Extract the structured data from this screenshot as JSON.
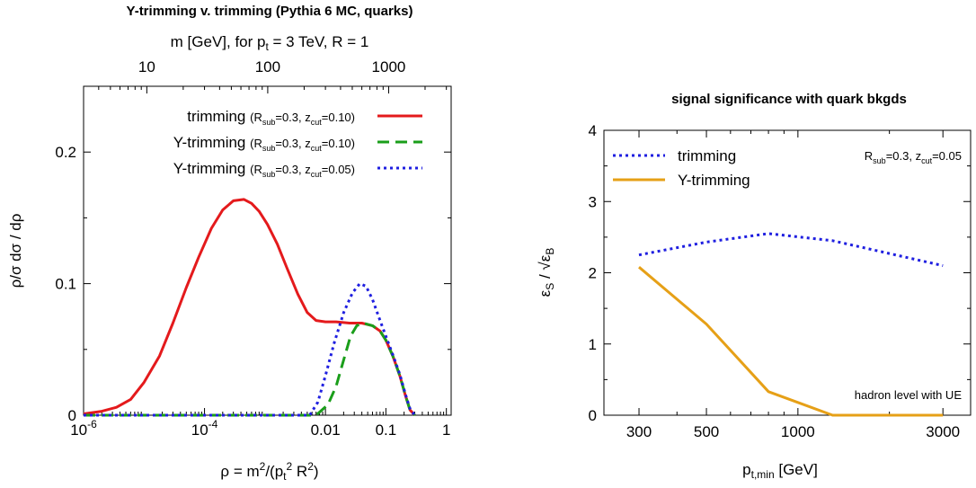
{
  "chart_data": [
    {
      "type": "line",
      "title": "Y-trimming v. trimming (Pythia 6 MC, quarks)",
      "top_axis_label": "m [GeV], for p_t = 3 TeV, R = 1",
      "top_ticks": [
        {
          "label": "10",
          "m": 10
        },
        {
          "label": "100",
          "m": 100
        },
        {
          "label": "1000",
          "m": 1000
        }
      ],
      "xlabel": "ρ = m²/(p_t² R²)",
      "ylabel": "ρ/σ dσ / dρ",
      "xscale": "log",
      "xlim": [
        1e-06,
        1.2
      ],
      "ylim": [
        0,
        0.25
      ],
      "xticks": [
        {
          "value": 1e-06,
          "base": "10",
          "exp": "-6"
        },
        {
          "value": 0.0001,
          "base": "10",
          "exp": "-4"
        },
        {
          "value": 0.01,
          "base": "0.01",
          "exp": ""
        },
        {
          "value": 0.1,
          "base": "0.1",
          "exp": ""
        },
        {
          "value": 1,
          "base": "1",
          "exp": ""
        }
      ],
      "yticks": [
        {
          "value": 0,
          "label": "0"
        },
        {
          "value": 0.1,
          "label": "0.1"
        },
        {
          "value": 0.2,
          "label": "0.2"
        }
      ],
      "legend_position": "top-right",
      "series": [
        {
          "name": "trimming",
          "params": "(R_sub=0.3, z_cut=0.10)",
          "color": "#e41a1c",
          "dash": "solid",
          "x": [
            1e-06,
            2e-06,
            3.5e-06,
            6e-06,
            1e-05,
            1.8e-05,
            3e-05,
            5e-05,
            8e-05,
            0.00013,
            0.0002,
            0.0003,
            0.00045,
            0.0006,
            0.0008,
            0.0011,
            0.0016,
            0.0023,
            0.0035,
            0.005,
            0.007,
            0.01,
            0.015,
            0.025,
            0.04,
            0.06,
            0.08,
            0.1,
            0.13,
            0.17,
            0.21,
            0.25,
            0.3
          ],
          "y": [
            0.001,
            0.003,
            0.006,
            0.012,
            0.025,
            0.045,
            0.07,
            0.097,
            0.12,
            0.142,
            0.156,
            0.163,
            0.164,
            0.161,
            0.155,
            0.145,
            0.13,
            0.112,
            0.092,
            0.078,
            0.072,
            0.071,
            0.071,
            0.07,
            0.07,
            0.068,
            0.064,
            0.057,
            0.045,
            0.03,
            0.015,
            0.004,
            0.0
          ]
        },
        {
          "name": "Y-trimming",
          "params": "(R_sub=0.3, z_cut=0.10)",
          "color": "#1a9e1a",
          "dash": "dashed",
          "x": [
            1e-06,
            1e-05,
            0.0001,
            0.001,
            0.007,
            0.011,
            0.015,
            0.02,
            0.026,
            0.033,
            0.042,
            0.06,
            0.08,
            0.1,
            0.13,
            0.17,
            0.21,
            0.25,
            0.3
          ],
          "y": [
            0,
            0,
            0,
            0,
            0.0,
            0.008,
            0.022,
            0.042,
            0.06,
            0.068,
            0.07,
            0.068,
            0.064,
            0.057,
            0.045,
            0.03,
            0.015,
            0.004,
            0.0
          ]
        },
        {
          "name": "Y-trimming",
          "params": "(R_sub=0.3, z_cut=0.05)",
          "color": "#1f1fe0",
          "dash": "dotted",
          "x": [
            1e-06,
            1e-05,
            0.0001,
            0.001,
            0.0055,
            0.0075,
            0.01,
            0.014,
            0.02,
            0.028,
            0.037,
            0.047,
            0.06,
            0.08,
            0.1,
            0.13,
            0.17,
            0.21,
            0.25,
            0.3
          ],
          "y": [
            0,
            0,
            0,
            0,
            0.0,
            0.01,
            0.03,
            0.055,
            0.078,
            0.093,
            0.1,
            0.098,
            0.088,
            0.072,
            0.06,
            0.046,
            0.031,
            0.016,
            0.005,
            0.0
          ]
        }
      ]
    },
    {
      "type": "line",
      "title": "signal significance with quark bkgds",
      "xlabel": "p_t,min [GeV]",
      "ylabel": "ε_S / √ε_B",
      "xscale": "log",
      "xlim": [
        230,
        3700
      ],
      "ylim": [
        0,
        4
      ],
      "xticks": [
        {
          "value": 300,
          "label": "300"
        },
        {
          "value": 500,
          "label": "500"
        },
        {
          "value": 1000,
          "label": "1000"
        },
        {
          "value": 3000,
          "label": "3000"
        }
      ],
      "yticks": [
        {
          "value": 0,
          "label": "0"
        },
        {
          "value": 1,
          "label": "1"
        },
        {
          "value": 2,
          "label": "2"
        },
        {
          "value": 3,
          "label": "3"
        },
        {
          "value": 4,
          "label": "4"
        }
      ],
      "legend_position": "top-left",
      "params_note": "R_sub=0.3, z_cut=0.05",
      "annotation": "hadron level with UE",
      "series": [
        {
          "name": "trimming",
          "color": "#1f1fe0",
          "dash": "dotted",
          "x": [
            300,
            500,
            800,
            1300,
            2000,
            3000
          ],
          "y": [
            2.25,
            2.43,
            2.55,
            2.45,
            2.27,
            2.1
          ]
        },
        {
          "name": "Y-trimming",
          "color": "#e6a017",
          "dash": "solid",
          "x": [
            300,
            500,
            800,
            1300,
            2000,
            3000
          ],
          "y": [
            2.08,
            1.28,
            0.33,
            0.0,
            0.0,
            0.0
          ]
        }
      ]
    }
  ]
}
